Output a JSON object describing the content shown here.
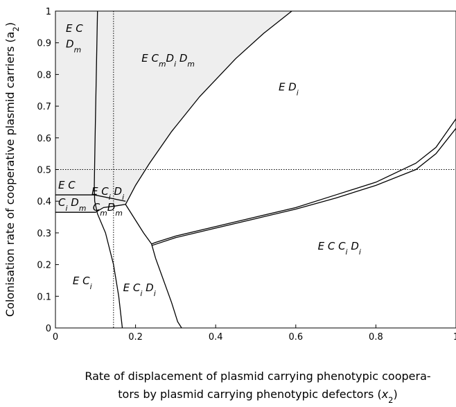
{
  "chart_data": {
    "type": "line",
    "x_label": [
      [
        {
          "t": "Rate of displacement of plasmid carrying phenotypic coopera-"
        }
      ],
      [
        {
          "t": "tors by plasmid carrying phenotypic defectors ("
        },
        {
          "t": "x",
          "italic": true
        },
        {
          "t": "2",
          "sub": true
        },
        {
          "t": ")"
        }
      ]
    ],
    "y_label": [
      {
        "t": "Colonisation rate of cooperative plasmid carriers (a"
      },
      {
        "t": "2",
        "sub": true
      },
      {
        "t": ")"
      }
    ],
    "xlim": [
      0,
      1
    ],
    "ylim": [
      0,
      1
    ],
    "xticks": [
      0,
      0.2,
      0.4,
      0.6,
      0.8,
      1
    ],
    "yticks": [
      0,
      0.1,
      0.2,
      0.3,
      0.4,
      0.5,
      0.6,
      0.7,
      0.8,
      0.9,
      1
    ],
    "shaded_region": {
      "color": "#eeeeee",
      "x": [
        0,
        0,
        0.105,
        0.59,
        0.52,
        0.45,
        0.36,
        0.29,
        0.235,
        0.2,
        0.175,
        0.15,
        0.12,
        0.1
      ],
      "values": [
        0.365,
        1,
        1,
        1,
        0.93,
        0.85,
        0.73,
        0.62,
        0.52,
        0.45,
        0.39,
        0.385,
        0.38,
        0.365
      ]
    },
    "reference_lines": {
      "x": [
        0.145
      ],
      "y": [
        0.5
      ],
      "color": "#000000"
    },
    "series": [
      {
        "color": "#000000",
        "x": [
          0.105,
          0.102,
          0.099,
          0.097,
          0.098,
          0.105,
          0.125,
          0.145,
          0.158,
          0.167
        ],
        "values": [
          1,
          0.8,
          0.6,
          0.45,
          0.4,
          0.36,
          0.3,
          0.2,
          0.1,
          0
        ]
      },
      {
        "color": "#000000",
        "x": [
          0.175,
          0.2,
          0.235,
          0.29,
          0.36,
          0.45,
          0.52,
          0.59
        ],
        "values": [
          0.39,
          0.45,
          0.52,
          0.62,
          0.73,
          0.85,
          0.93,
          1
        ]
      },
      {
        "color": "#000000",
        "x": [
          0,
          0.097,
          0.175
        ],
        "values": [
          0.42,
          0.42,
          0.4
        ]
      },
      {
        "color": "#000000",
        "x": [
          0,
          0.1,
          0.12,
          0.15,
          0.175
        ],
        "values": [
          0.365,
          0.365,
          0.38,
          0.385,
          0.39
        ]
      },
      {
        "color": "#000000",
        "x": [
          0.175,
          0.2,
          0.22,
          0.24,
          0.25,
          0.27,
          0.29,
          0.305,
          0.315
        ],
        "values": [
          0.39,
          0.34,
          0.3,
          0.265,
          0.22,
          0.15,
          0.08,
          0.02,
          0
        ]
      },
      {
        "color": "#000000",
        "x": [
          0.24,
          0.25,
          0.3,
          0.4,
          0.5,
          0.6,
          0.7,
          0.8,
          0.9,
          0.95,
          1
        ],
        "values": [
          0.265,
          0.27,
          0.29,
          0.32,
          0.35,
          0.38,
          0.42,
          0.46,
          0.52,
          0.57,
          0.66
        ]
      },
      {
        "color": "#000000",
        "x": [
          0.24,
          0.3,
          0.4,
          0.5,
          0.6,
          0.7,
          0.8,
          0.9,
          0.95,
          1
        ],
        "values": [
          0.26,
          0.285,
          0.315,
          0.345,
          0.375,
          0.41,
          0.45,
          0.5,
          0.55,
          0.63
        ]
      }
    ],
    "annotations": [
      {
        "x": 0.026,
        "y": 0.934,
        "parts": [
          {
            "t": "E C"
          }
        ]
      },
      {
        "x": 0.026,
        "y": 0.885,
        "parts": [
          {
            "t": "D"
          },
          {
            "t": "m",
            "sub": true
          }
        ]
      },
      {
        "x": 0.215,
        "y": 0.84,
        "parts": [
          {
            "t": "E C"
          },
          {
            "t": "m",
            "sub": true
          },
          {
            "t": "D"
          },
          {
            "t": "i",
            "sub": true
          },
          {
            "t": " D"
          },
          {
            "t": "m",
            "sub": true
          }
        ]
      },
      {
        "x": 0.557,
        "y": 0.75,
        "parts": [
          {
            "t": "E D"
          },
          {
            "t": "i",
            "sub": true
          }
        ]
      },
      {
        "x": 0.007,
        "y": 0.44,
        "parts": [
          {
            "t": "E C"
          }
        ]
      },
      {
        "x": 0.007,
        "y": 0.385,
        "parts": [
          {
            "t": "C"
          },
          {
            "t": "i",
            "sub": true
          },
          {
            "t": " D"
          },
          {
            "t": "m",
            "sub": true
          }
        ]
      },
      {
        "x": 0.09,
        "y": 0.42,
        "parts": [
          {
            "t": "E C"
          },
          {
            "t": "i",
            "sub": true
          },
          {
            "t": " D"
          },
          {
            "t": "i",
            "sub": true
          }
        ]
      },
      {
        "x": 0.093,
        "y": 0.37,
        "parts": [
          {
            "t": "C"
          },
          {
            "t": "m",
            "sub": true
          },
          {
            "t": "D"
          },
          {
            "t": "m",
            "sub": true
          }
        ]
      },
      {
        "x": 0.655,
        "y": 0.247,
        "parts": [
          {
            "t": "E C C"
          },
          {
            "t": "i",
            "sub": true
          },
          {
            "t": " D"
          },
          {
            "t": "i",
            "sub": true
          }
        ]
      },
      {
        "x": 0.043,
        "y": 0.138,
        "parts": [
          {
            "t": "E C"
          },
          {
            "t": "i",
            "sub": true
          }
        ]
      },
      {
        "x": 0.169,
        "y": 0.116,
        "parts": [
          {
            "t": "E C"
          },
          {
            "t": "i",
            "sub": true
          },
          {
            "t": " D"
          },
          {
            "t": "i",
            "sub": true
          }
        ]
      }
    ]
  }
}
